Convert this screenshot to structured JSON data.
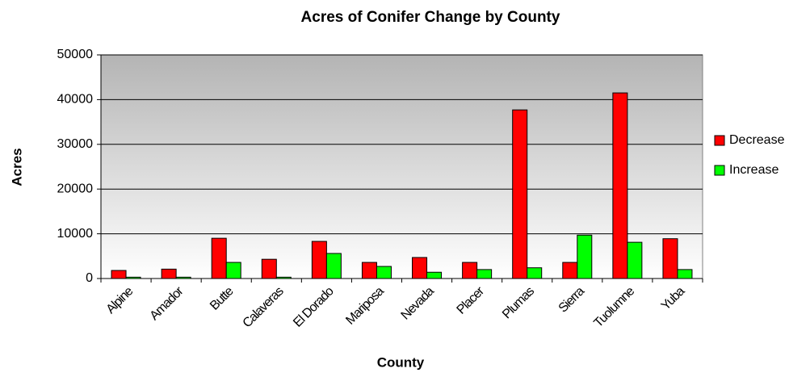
{
  "chart_data": {
    "type": "bar",
    "title": "Acres of Conifer Change by County",
    "x_label": "County",
    "y_label": "Acres",
    "categories": [
      "Alpine",
      "Amador",
      "Butte",
      "Calaveras",
      "El Dorado",
      "Mariposa",
      "Nevada",
      "Placer",
      "Plumas",
      "Sierra",
      "Tuolumne",
      "Yuba"
    ],
    "series": [
      {
        "name": "Decrease",
        "color": "#ff0000",
        "values": [
          1800,
          2100,
          9000,
          4300,
          8300,
          3600,
          4700,
          3600,
          37700,
          3600,
          41500,
          8900
        ]
      },
      {
        "name": "Increase",
        "color": "#00ff00",
        "values": [
          300,
          300,
          3600,
          300,
          5600,
          2700,
          1400,
          2000,
          2400,
          9700,
          8100,
          2000
        ]
      }
    ],
    "ylim": [
      0,
      50000
    ],
    "yticks": [
      0,
      10000,
      20000,
      30000,
      40000,
      50000
    ],
    "grid": true,
    "legend": "right"
  }
}
